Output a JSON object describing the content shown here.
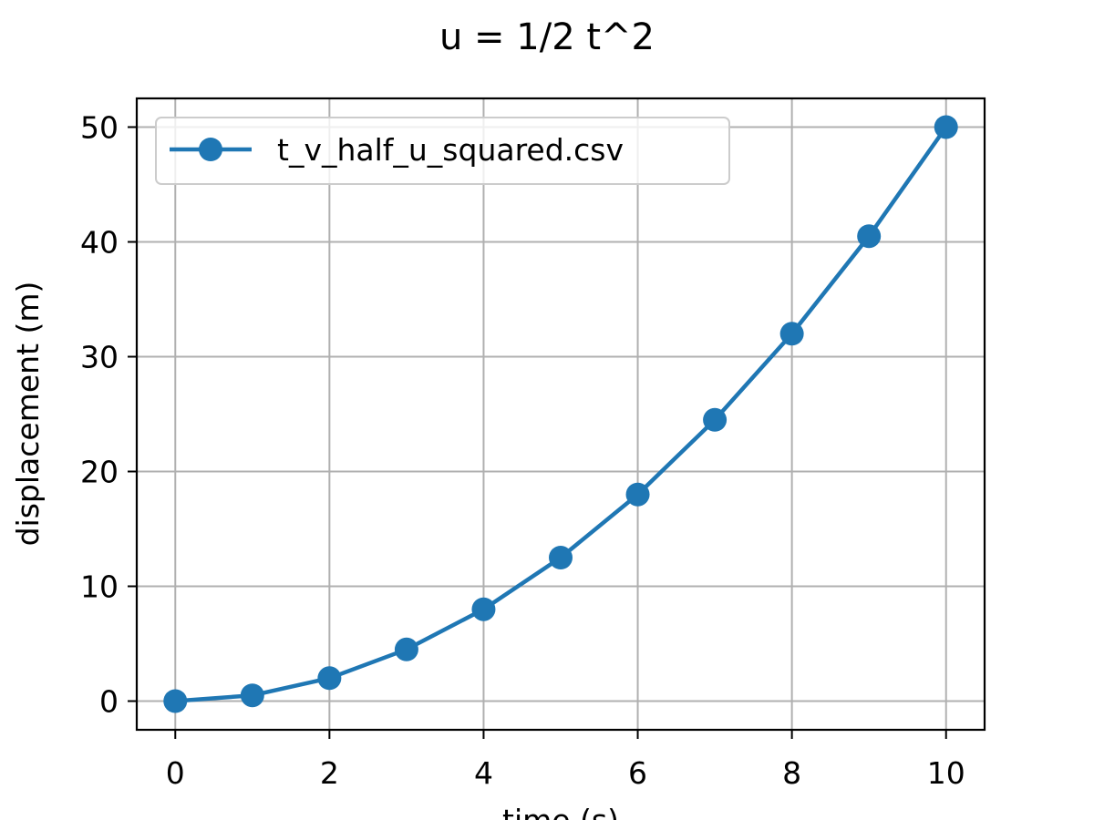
{
  "chart_data": {
    "type": "line",
    "title": "u = 1/2 t^2",
    "xlabel": "time (s)",
    "ylabel": "displacement (m)",
    "xlim": [
      -0.5,
      10.5
    ],
    "ylim": [
      -2.5,
      52.5
    ],
    "xticks": [
      0,
      2,
      4,
      6,
      8,
      10
    ],
    "yticks": [
      0,
      10,
      20,
      30,
      40,
      50
    ],
    "grid": true,
    "legend_position": "top-left",
    "series": [
      {
        "name": "t_v_half_u_squared.csv",
        "color": "#1f77b4",
        "marker": "circle",
        "x": [
          0,
          1,
          2,
          3,
          4,
          5,
          6,
          7,
          8,
          9,
          10
        ],
        "y": [
          0,
          0.5,
          2,
          4.5,
          8,
          12.5,
          18,
          24.5,
          32,
          40.5,
          50
        ]
      }
    ]
  }
}
